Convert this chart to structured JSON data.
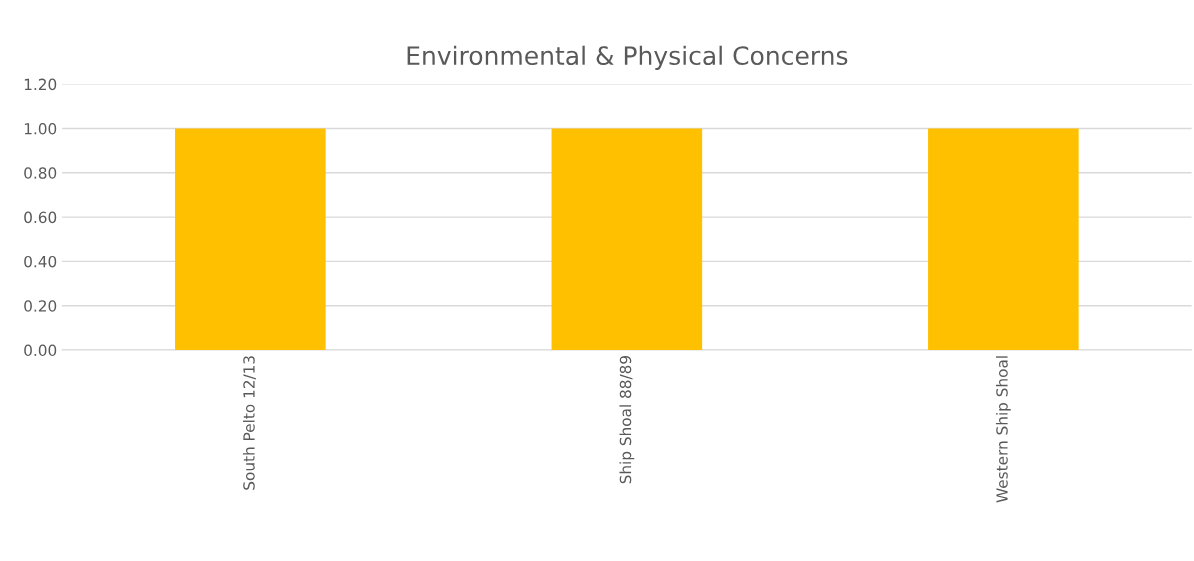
{
  "chart_data": {
    "type": "bar",
    "title": "Environmental & Physical Concerns",
    "categories": [
      "South Pelto 12/13",
      "Ship Shoal 88/89",
      "Western Ship Shoal"
    ],
    "values": [
      1.0,
      1.0,
      1.0
    ],
    "color": "#ffc000",
    "ylim": [
      0,
      1.2
    ],
    "yticks": [
      {
        "value": 0,
        "label": "0.00"
      },
      {
        "value": 0.2,
        "label": "0.20"
      },
      {
        "value": 0.4,
        "label": "0.40"
      },
      {
        "value": 0.6,
        "label": "0.60"
      },
      {
        "value": 0.8,
        "label": "0.80"
      },
      {
        "value": 1.0,
        "label": "1.00"
      },
      {
        "value": 1.2,
        "label": "1.20"
      }
    ],
    "grid": "y",
    "legend": false
  }
}
